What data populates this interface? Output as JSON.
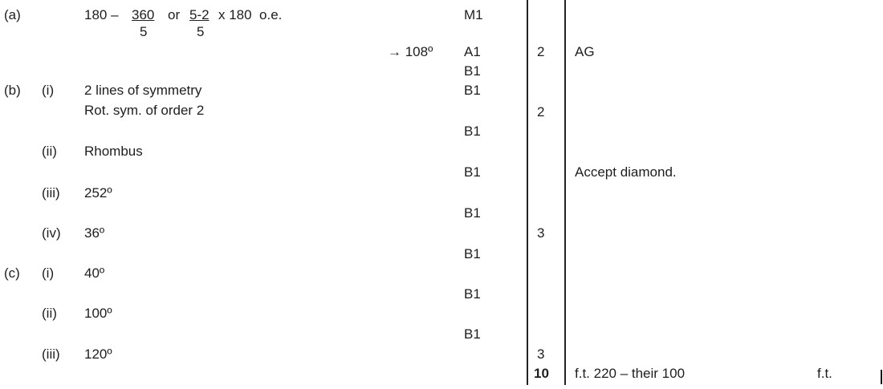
{
  "part_a": {
    "label": "(a)",
    "w1": "180 –",
    "frac1": {
      "num": "360",
      "den": "5"
    },
    "or": "or",
    "frac2": {
      "num": "5-2",
      "den": "5"
    },
    "w2": "x 180  o.e.",
    "answer": "→ 108º"
  },
  "part_b": {
    "label": "(b)",
    "i": {
      "label": "(i)",
      "line1": "2 lines of symmetry",
      "line2": "Rot. sym. of order 2"
    },
    "ii": {
      "label": "(ii)",
      "answer": "Rhombus"
    },
    "iii": {
      "label": "(iii)",
      "answer": "252º"
    },
    "iv": {
      "label": "(iv)",
      "answer": "36º"
    }
  },
  "part_c": {
    "label": "(c)",
    "i": {
      "label": "(i)",
      "answer": "40º"
    },
    "ii": {
      "label": "(ii)",
      "answer": "100º"
    },
    "iii": {
      "label": "(iii)",
      "answer": "120º"
    }
  },
  "marks": [
    "M1",
    "A1",
    "B1",
    "B1",
    "B1",
    "B1",
    "B1",
    "B1",
    "B1",
    "B1"
  ],
  "totals": [
    "2",
    "2",
    "3",
    "3",
    "10"
  ],
  "comments": [
    "AG",
    "Accept diamond.",
    "f.t. 220 – their 100",
    "f.t."
  ]
}
